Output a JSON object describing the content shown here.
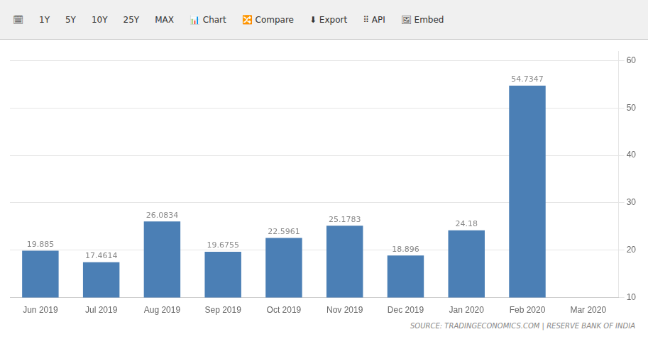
{
  "chart_data": {
    "type": "bar",
    "categories": [
      "Jun 2019",
      "Jul 2019",
      "Aug 2019",
      "Sep 2019",
      "Oct 2019",
      "Nov 2019",
      "Dec 2019",
      "Jan 2020",
      "Feb 2020",
      "Mar 2020"
    ],
    "values": [
      19.885,
      17.4614,
      26.0834,
      19.6755,
      22.5961,
      25.1783,
      18.896,
      24.18,
      54.7347,
      null
    ],
    "color": "#4b7fb5",
    "ylim": [
      10,
      62
    ],
    "yticks": [
      10,
      20,
      30,
      40,
      50,
      60
    ],
    "grid": true,
    "data_labels": true,
    "annotations": [
      "🗓",
      "1Y",
      "5Y",
      "10Y",
      "25Y",
      "MAX",
      "📊 Chart",
      "🔀 Compare",
      "⬇ Export",
      "⠿ API",
      "🖼 Embed",
      "SOURCE: TRADINGECONOMICS.COM | RESERVE BANK OF INDIA"
    ]
  }
}
